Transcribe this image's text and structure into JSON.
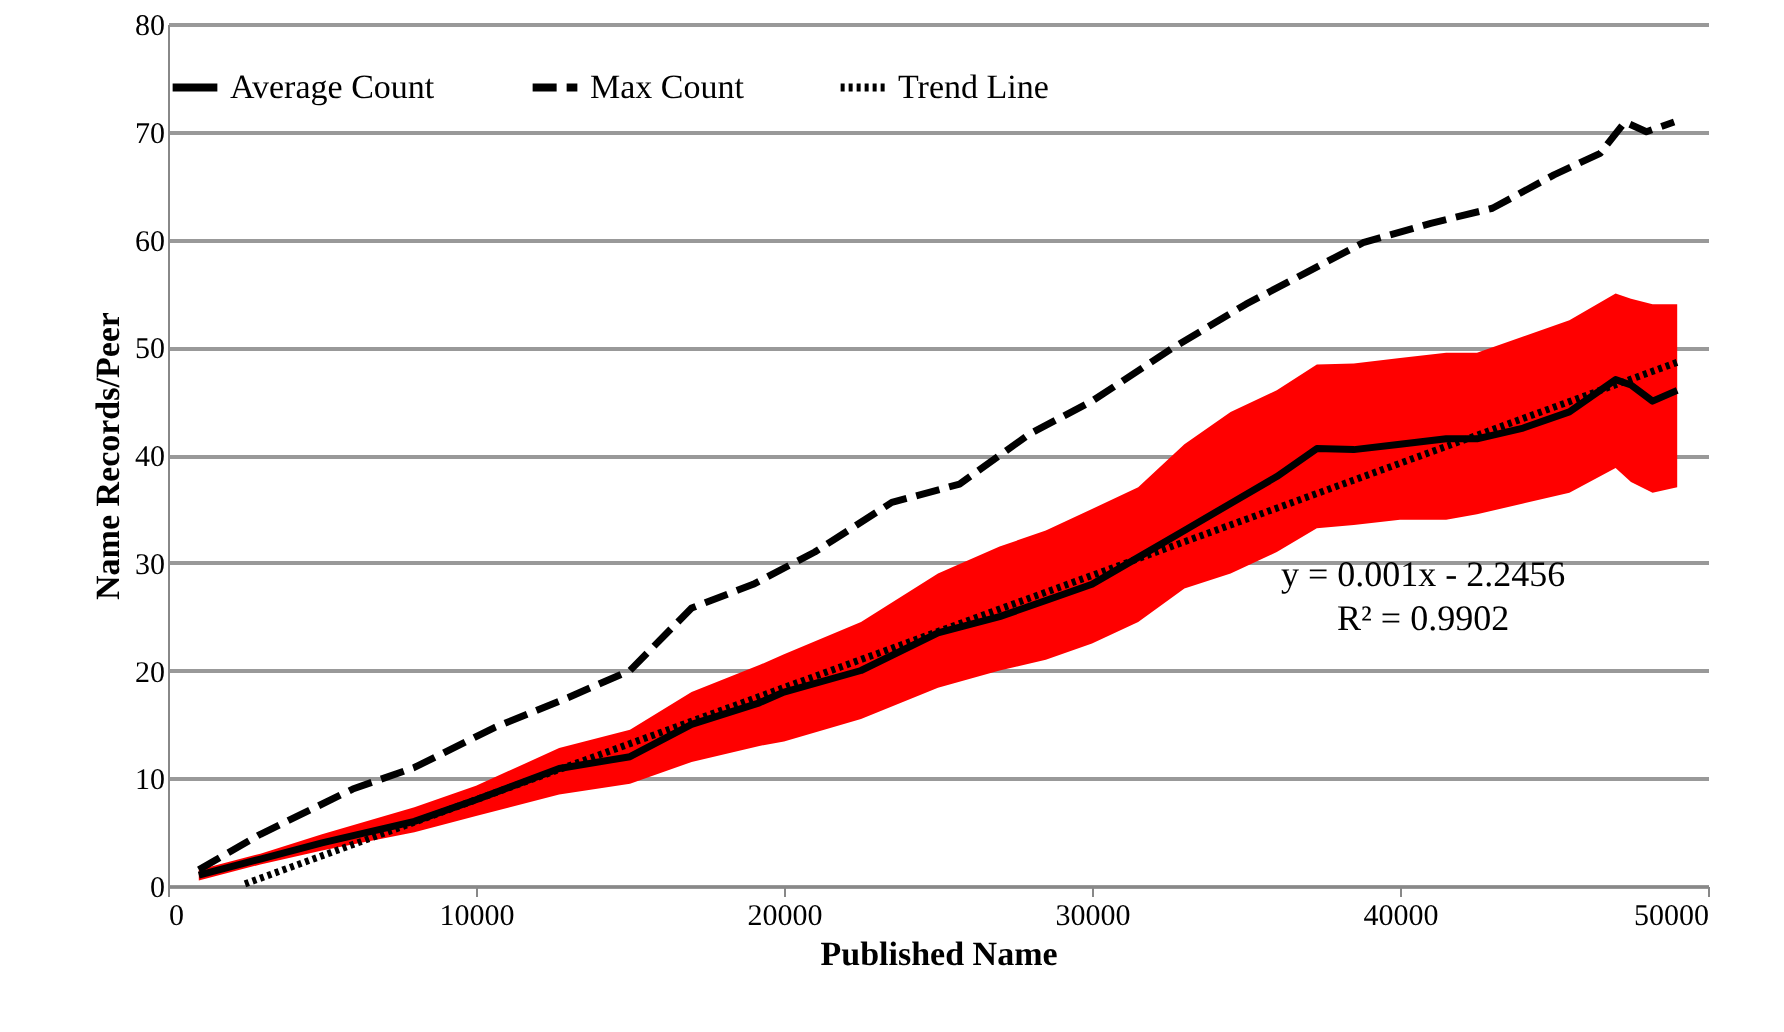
{
  "chart_data": {
    "type": "line",
    "xlabel": "Published Name",
    "ylabel": "Name Records/Peer",
    "xlim": [
      0,
      50000
    ],
    "xticks": [
      0,
      10000,
      20000,
      30000,
      40000,
      50000
    ],
    "ylim": [
      0,
      80
    ],
    "yticks": [
      0,
      10,
      20,
      30,
      40,
      50,
      60,
      70,
      80
    ],
    "grid": "y",
    "legend": "top",
    "marker": "none",
    "annotations": [
      "y = 0.001x - 2.2456",
      "R² = 0.9902"
    ],
    "series": [
      {
        "name": "Average Count",
        "color": "#000000",
        "line_style": "solid",
        "x": [
          1000,
          3000,
          5000,
          8000,
          10000,
          12700,
          15000,
          17000,
          19200,
          20000,
          22500,
          25000,
          27000,
          28500,
          30000,
          31500,
          33000,
          34500,
          36000,
          37300,
          38500,
          40000,
          41500,
          42500,
          44000,
          45500,
          47000,
          47500,
          48200,
          49000
        ],
        "values": [
          1,
          2.5,
          4,
          6,
          8,
          10.9,
          12,
          15,
          17,
          18,
          20,
          23.5,
          25,
          26.5,
          28,
          30.5,
          33,
          35.5,
          38,
          40.6,
          40.5,
          41,
          41.5,
          41.5,
          42.5,
          44,
          47,
          46.5,
          45,
          46
        ],
        "lower": [
          0.5,
          2,
          3.3,
          5,
          6.5,
          8.5,
          9.5,
          11.5,
          13,
          13.4,
          15.5,
          18.4,
          20,
          21,
          22.5,
          24.5,
          27.6,
          29,
          31,
          33.2,
          33.5,
          34,
          34,
          34.5,
          35.5,
          36.5,
          38.8,
          37.5,
          36.5,
          37
        ],
        "upper": [
          1.5,
          3,
          4.8,
          7.3,
          9.3,
          12.8,
          14.5,
          18,
          20.5,
          21.5,
          24.5,
          29,
          31.5,
          33,
          35,
          37,
          41,
          44,
          46,
          48.4,
          48.5,
          49,
          49.5,
          49.5,
          51,
          52.5,
          55,
          54.5,
          54,
          54
        ]
      },
      {
        "name": "Max Count",
        "color": "#000000",
        "line_style": "dashed",
        "x": [
          1000,
          3000,
          6000,
          8000,
          10600,
          13000,
          15000,
          17000,
          19000,
          21000,
          23500,
          25700,
          28000,
          30000,
          32600,
          35000,
          37000,
          38800,
          41000,
          43000,
          45000,
          46500,
          47300,
          48000,
          48900
        ],
        "values": [
          1.5,
          4.8,
          9,
          11,
          14.7,
          17.5,
          20,
          25.8,
          28,
          31,
          35.6,
          37.3,
          42,
          45,
          49.9,
          54,
          57,
          59.7,
          61.5,
          62.9,
          66,
          68,
          70.9,
          70,
          70.9
        ]
      },
      {
        "name": "Trend Line",
        "color": "#000000",
        "line_style": "dotted",
        "x": [
          2500,
          49000
        ],
        "values": [
          0.2,
          48.6
        ]
      }
    ]
  }
}
